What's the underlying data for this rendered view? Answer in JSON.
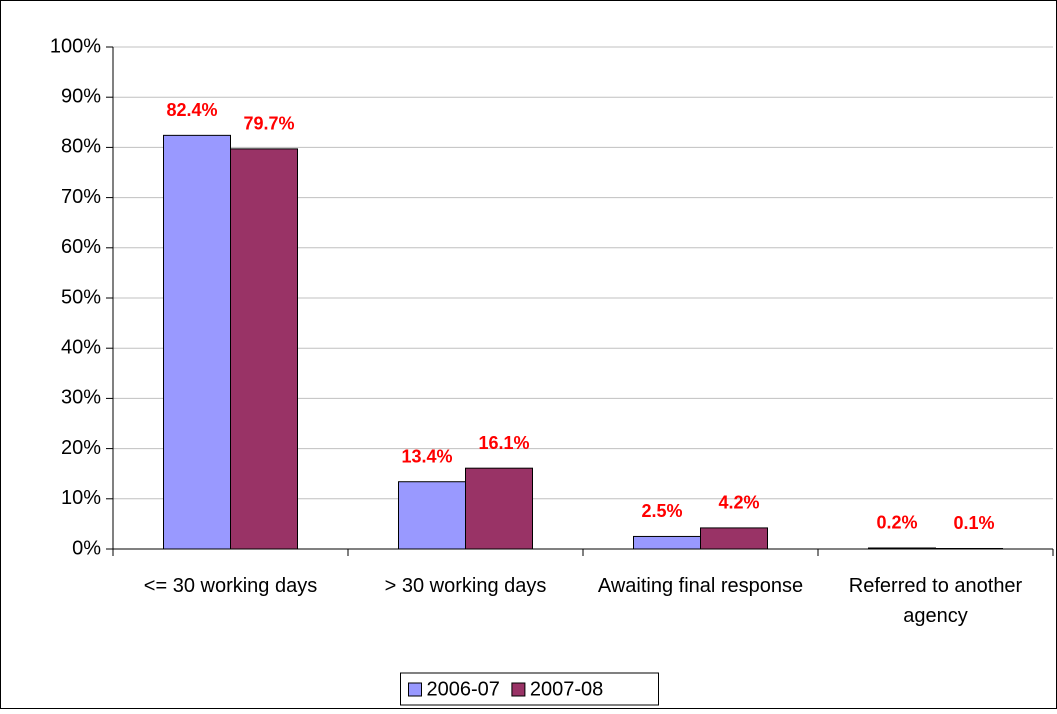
{
  "chart_data": {
    "type": "bar",
    "categories": [
      "<= 30 working days",
      "> 30 working days",
      "Awaiting final response",
      "Referred to another agency"
    ],
    "series": [
      {
        "name": "2006-07",
        "color": "#9999ff",
        "values": [
          82.4,
          13.4,
          2.5,
          0.2
        ],
        "value_labels": [
          "82.4%",
          "13.4%",
          "2.5%",
          "0.2%"
        ]
      },
      {
        "name": "2007-08",
        "color": "#993366",
        "values": [
          79.7,
          16.1,
          4.2,
          0.1
        ],
        "value_labels": [
          "79.7%",
          "16.1%",
          "4.2%",
          "0.1%"
        ]
      }
    ],
    "ylim": [
      0,
      100
    ],
    "yticks": [
      {
        "value": 0,
        "label": "0%"
      },
      {
        "value": 10,
        "label": "10%"
      },
      {
        "value": 20,
        "label": "20%"
      },
      {
        "value": 30,
        "label": "30%"
      },
      {
        "value": 40,
        "label": "40%"
      },
      {
        "value": 50,
        "label": "50%"
      },
      {
        "value": 60,
        "label": "60%"
      },
      {
        "value": 70,
        "label": "70%"
      },
      {
        "value": 80,
        "label": "80%"
      },
      {
        "value": 90,
        "label": "90%"
      },
      {
        "value": 100,
        "label": "100%"
      }
    ],
    "grid": true,
    "legend": "bottom",
    "value_label_color": "#ff0000"
  }
}
